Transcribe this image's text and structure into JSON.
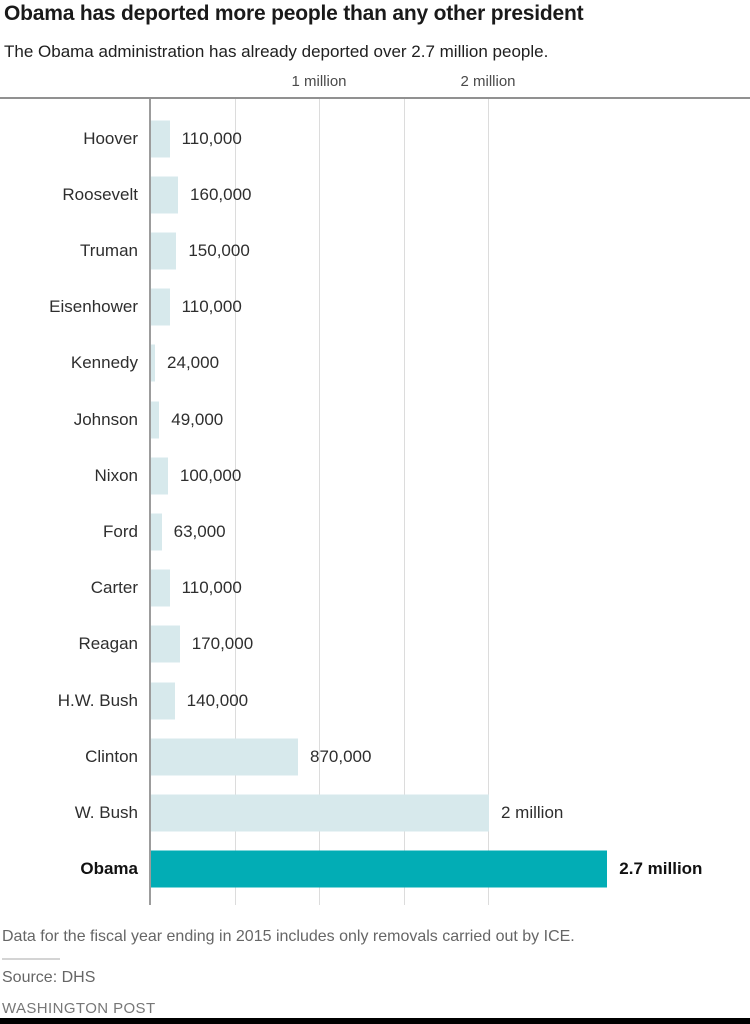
{
  "header": {
    "title": "Obama has deported more people than any other president",
    "subtitle": "The Obama administration has already deported over 2.7 million people."
  },
  "chart_data": {
    "type": "bar",
    "orientation": "horizontal",
    "title": "Obama has deported more people than any other president",
    "subtitle": "The Obama administration has already deported over 2.7 million people.",
    "categories": [
      "Hoover",
      "Roosevelt",
      "Truman",
      "Eisenhower",
      "Kennedy",
      "Johnson",
      "Nixon",
      "Ford",
      "Carter",
      "Reagan",
      "H.W. Bush",
      "Clinton",
      "W. Bush",
      "Obama"
    ],
    "values": [
      110000,
      160000,
      150000,
      110000,
      24000,
      49000,
      100000,
      63000,
      110000,
      170000,
      140000,
      870000,
      2000000,
      2700000
    ],
    "value_labels": [
      "110,000",
      "160,000",
      "150,000",
      "110,000",
      "24,000",
      "49,000",
      "100,000",
      "63,000",
      "110,000",
      "170,000",
      "140,000",
      "870,000",
      "2 million",
      "2.7 million"
    ],
    "highlighted_category": "Obama",
    "x_axis": {
      "position": "top",
      "tick_labels": [
        "1 million",
        "2 million"
      ],
      "tick_values": [
        1000000,
        2000000
      ],
      "gridline_step": 500000,
      "xlim": [
        0,
        2700000
      ]
    },
    "grid": true,
    "legend": false,
    "colors": {
      "bar_default": "#d7e9ec",
      "bar_highlight": "#02adb5"
    }
  },
  "footer": {
    "note": "Data for the fiscal year ending in 2015 includes only removals carried out by ICE.",
    "source": "Source: DHS",
    "branding": "WASHINGTON POST"
  }
}
